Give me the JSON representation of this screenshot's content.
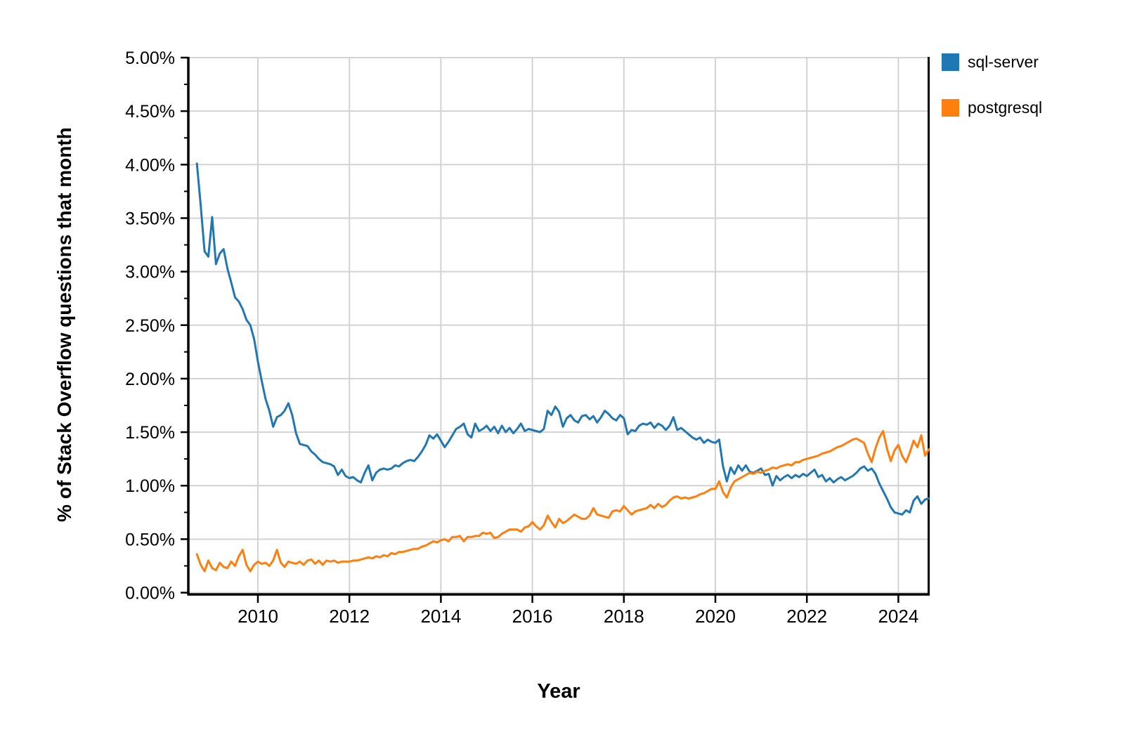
{
  "chart_data": {
    "type": "line",
    "title": "",
    "xlabel": "Year",
    "ylabel": "% of Stack Overflow questions that month",
    "x_start_year": 2008.6667,
    "x_step_years": 0.0833333,
    "xlim": [
      2008.45,
      2024.67
    ],
    "ylim": [
      0,
      5
    ],
    "grid": true,
    "legend_position": "top-right-outside",
    "x_tick_values": [
      2010,
      2012,
      2014,
      2016,
      2018,
      2020,
      2022,
      2024
    ],
    "x_tick_labels": [
      "2010",
      "2012",
      "2014",
      "2016",
      "2018",
      "2020",
      "2022",
      "2024"
    ],
    "y_tick_values": [
      0,
      0.5,
      1.0,
      1.5,
      2.0,
      2.5,
      3.0,
      3.5,
      4.0,
      4.5,
      5.0
    ],
    "y_tick_labels": [
      "0.00%",
      "0.50%",
      "1.00%",
      "1.50%",
      "2.00%",
      "2.50%",
      "3.00%",
      "3.50%",
      "4.00%",
      "4.50%",
      "5.00%"
    ],
    "y_minor_tick_step": 0.25,
    "grid_color": "#d3d3d3",
    "axis_color": "#000000",
    "series": [
      {
        "name": "sql-server",
        "color": "#1F77B4",
        "values": [
          4.01,
          3.62,
          3.19,
          3.14,
          3.51,
          3.07,
          3.17,
          3.21,
          3.03,
          2.9,
          2.76,
          2.72,
          2.65,
          2.55,
          2.5,
          2.37,
          2.16,
          1.98,
          1.81,
          1.7,
          1.55,
          1.64,
          1.66,
          1.7,
          1.77,
          1.66,
          1.49,
          1.39,
          1.38,
          1.37,
          1.32,
          1.29,
          1.25,
          1.22,
          1.21,
          1.2,
          1.18,
          1.1,
          1.15,
          1.09,
          1.07,
          1.08,
          1.05,
          1.03,
          1.12,
          1.19,
          1.05,
          1.12,
          1.15,
          1.16,
          1.15,
          1.16,
          1.19,
          1.18,
          1.21,
          1.23,
          1.24,
          1.23,
          1.27,
          1.32,
          1.38,
          1.47,
          1.44,
          1.48,
          1.42,
          1.36,
          1.41,
          1.47,
          1.53,
          1.55,
          1.58,
          1.48,
          1.45,
          1.58,
          1.51,
          1.53,
          1.56,
          1.51,
          1.55,
          1.49,
          1.56,
          1.5,
          1.54,
          1.49,
          1.53,
          1.58,
          1.51,
          1.53,
          1.52,
          1.51,
          1.5,
          1.53,
          1.7,
          1.66,
          1.74,
          1.69,
          1.55,
          1.63,
          1.66,
          1.61,
          1.59,
          1.65,
          1.66,
          1.62,
          1.65,
          1.59,
          1.64,
          1.7,
          1.67,
          1.63,
          1.61,
          1.66,
          1.63,
          1.48,
          1.52,
          1.51,
          1.56,
          1.58,
          1.57,
          1.59,
          1.54,
          1.58,
          1.56,
          1.52,
          1.56,
          1.64,
          1.52,
          1.54,
          1.51,
          1.48,
          1.45,
          1.43,
          1.45,
          1.4,
          1.43,
          1.41,
          1.4,
          1.43,
          1.18,
          1.04,
          1.17,
          1.11,
          1.19,
          1.14,
          1.19,
          1.13,
          1.12,
          1.14,
          1.16,
          1.1,
          1.11,
          1.0,
          1.09,
          1.05,
          1.08,
          1.1,
          1.07,
          1.1,
          1.08,
          1.11,
          1.09,
          1.12,
          1.15,
          1.08,
          1.1,
          1.04,
          1.07,
          1.03,
          1.06,
          1.08,
          1.05,
          1.07,
          1.09,
          1.12,
          1.16,
          1.18,
          1.14,
          1.16,
          1.11,
          1.02,
          0.95,
          0.88,
          0.8,
          0.75,
          0.74,
          0.73,
          0.77,
          0.75,
          0.86,
          0.9,
          0.83,
          0.87,
          0.88
        ]
      },
      {
        "name": "postgresql",
        "color": "#FF7F0E",
        "values": [
          0.36,
          0.26,
          0.2,
          0.3,
          0.23,
          0.21,
          0.28,
          0.24,
          0.23,
          0.29,
          0.25,
          0.34,
          0.4,
          0.26,
          0.2,
          0.26,
          0.29,
          0.27,
          0.28,
          0.25,
          0.3,
          0.4,
          0.28,
          0.24,
          0.29,
          0.28,
          0.27,
          0.29,
          0.26,
          0.3,
          0.31,
          0.27,
          0.3,
          0.26,
          0.3,
          0.29,
          0.3,
          0.28,
          0.29,
          0.29,
          0.29,
          0.3,
          0.3,
          0.31,
          0.32,
          0.33,
          0.32,
          0.34,
          0.33,
          0.35,
          0.34,
          0.37,
          0.36,
          0.38,
          0.38,
          0.39,
          0.4,
          0.41,
          0.41,
          0.43,
          0.44,
          0.46,
          0.48,
          0.47,
          0.49,
          0.5,
          0.48,
          0.52,
          0.52,
          0.53,
          0.48,
          0.52,
          0.52,
          0.53,
          0.53,
          0.56,
          0.55,
          0.56,
          0.51,
          0.52,
          0.55,
          0.57,
          0.59,
          0.59,
          0.59,
          0.57,
          0.61,
          0.62,
          0.66,
          0.62,
          0.59,
          0.63,
          0.72,
          0.66,
          0.61,
          0.69,
          0.65,
          0.67,
          0.7,
          0.73,
          0.71,
          0.69,
          0.69,
          0.72,
          0.79,
          0.73,
          0.72,
          0.71,
          0.7,
          0.76,
          0.77,
          0.76,
          0.81,
          0.77,
          0.73,
          0.76,
          0.77,
          0.78,
          0.79,
          0.82,
          0.79,
          0.83,
          0.8,
          0.82,
          0.86,
          0.89,
          0.9,
          0.88,
          0.89,
          0.88,
          0.89,
          0.9,
          0.92,
          0.93,
          0.95,
          0.97,
          0.97,
          1.04,
          0.94,
          0.89,
          0.98,
          1.04,
          1.06,
          1.08,
          1.1,
          1.12,
          1.11,
          1.13,
          1.12,
          1.14,
          1.15,
          1.17,
          1.16,
          1.18,
          1.19,
          1.2,
          1.19,
          1.22,
          1.22,
          1.24,
          1.25,
          1.26,
          1.27,
          1.28,
          1.3,
          1.31,
          1.32,
          1.34,
          1.36,
          1.37,
          1.39,
          1.41,
          1.43,
          1.44,
          1.42,
          1.4,
          1.3,
          1.22,
          1.35,
          1.45,
          1.51,
          1.35,
          1.23,
          1.33,
          1.38,
          1.28,
          1.22,
          1.31,
          1.42,
          1.36,
          1.47,
          1.28,
          1.34
        ]
      }
    ]
  },
  "legend": {
    "items": [
      {
        "label": "sql-server",
        "color": "#1F77B4"
      },
      {
        "label": "postgresql",
        "color": "#FF7F0E"
      }
    ]
  }
}
